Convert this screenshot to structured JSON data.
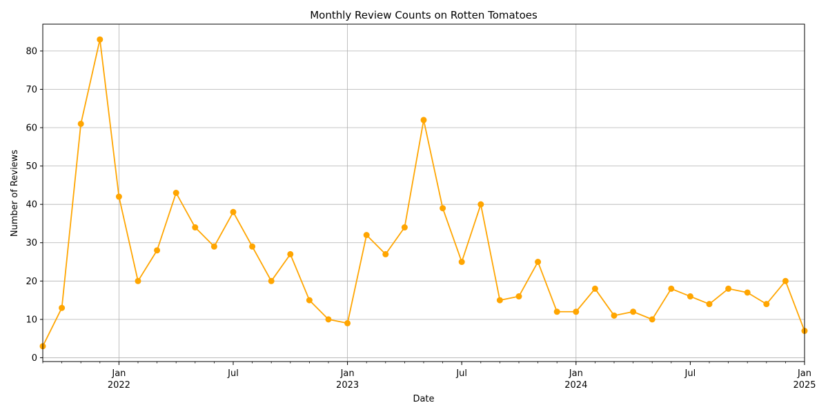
{
  "chart_data": {
    "type": "line",
    "title": "Monthly Review Counts on Rotten Tomatoes",
    "xlabel": "Date",
    "ylabel": "Number of Reviews",
    "ylim": [
      -1,
      87
    ],
    "xlim": [
      "2021-09",
      "2025-01"
    ],
    "grid": true,
    "line_color": "#FFA500",
    "marker": "circle",
    "x": [
      "2021-09",
      "2021-10",
      "2021-11",
      "2021-12",
      "2022-01",
      "2022-02",
      "2022-03",
      "2022-04",
      "2022-05",
      "2022-06",
      "2022-07",
      "2022-08",
      "2022-09",
      "2022-10",
      "2022-11",
      "2022-12",
      "2023-01",
      "2023-02",
      "2023-03",
      "2023-04",
      "2023-05",
      "2023-06",
      "2023-07",
      "2023-08",
      "2023-09",
      "2023-10",
      "2023-11",
      "2023-12",
      "2024-01",
      "2024-02",
      "2024-03",
      "2024-04",
      "2024-05",
      "2024-06",
      "2024-07",
      "2024-08",
      "2024-09",
      "2024-10",
      "2024-11",
      "2024-12",
      "2025-01"
    ],
    "series": [
      {
        "values": [
          3,
          13,
          61,
          83,
          42,
          20,
          28,
          43,
          34,
          29,
          38,
          29,
          20,
          27,
          15,
          10,
          9,
          32,
          27,
          34,
          62,
          39,
          25,
          40,
          15,
          16,
          25,
          12,
          12,
          18,
          11,
          12,
          10,
          18,
          16,
          14,
          18,
          17,
          14,
          20,
          7
        ]
      }
    ],
    "y_ticks": [
      0,
      10,
      20,
      30,
      40,
      50,
      60,
      70,
      80
    ],
    "x_major_ticks": [
      {
        "date": "2022-01",
        "label": "Jan",
        "year": "2022"
      },
      {
        "date": "2022-07",
        "label": "Jul",
        "year": ""
      },
      {
        "date": "2023-01",
        "label": "Jan",
        "year": "2023"
      },
      {
        "date": "2023-07",
        "label": "Jul",
        "year": ""
      },
      {
        "date": "2024-01",
        "label": "Jan",
        "year": "2024"
      },
      {
        "date": "2024-07",
        "label": "Jul",
        "year": ""
      },
      {
        "date": "2025-01",
        "label": "Jan",
        "year": "2025"
      }
    ],
    "x_gridlines_at": [
      "2022-01",
      "2023-01",
      "2024-01"
    ]
  }
}
